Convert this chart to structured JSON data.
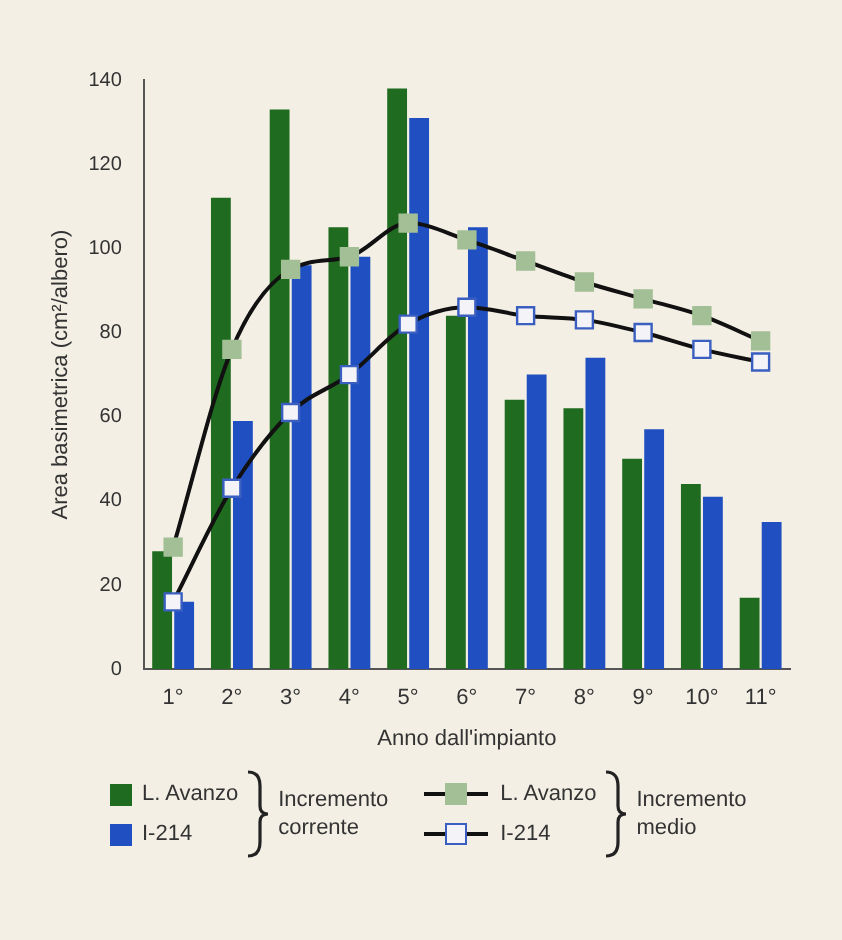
{
  "chart_data": {
    "type": "bar",
    "xlabel": "Anno dall'impianto",
    "ylabel": "Area basimetrica (cm²/albero)",
    "categories": [
      "1°",
      "2°",
      "3°",
      "4°",
      "5°",
      "6°",
      "7°",
      "8°",
      "9°",
      "10°",
      "11°"
    ],
    "series": [
      {
        "name": "L. Avanzo",
        "color": "#1f6b1f",
        "values": [
          28,
          112,
          133,
          105,
          138,
          84,
          64,
          62,
          50,
          44,
          17
        ]
      },
      {
        "name": "I-214",
        "color": "#1f4fc0",
        "values": [
          16,
          59,
          96,
          98,
          131,
          105,
          70,
          74,
          57,
          41,
          35
        ]
      },
      {
        "name": "L. Avanzo",
        "type": "line",
        "color": "#a3bf96",
        "values": [
          29,
          76,
          95,
          98,
          106,
          102,
          97,
          92,
          88,
          84,
          78
        ]
      },
      {
        "name": "I-214",
        "type": "line",
        "color": "#f4f4f8",
        "values": [
          16,
          43,
          61,
          70,
          82,
          86,
          84,
          83,
          80,
          76,
          73
        ]
      }
    ],
    "ylim": [
      0,
      140
    ],
    "yticks": [
      0,
      20,
      40,
      60,
      80,
      100,
      120,
      140
    ],
    "grid": false,
    "legend": "bottom",
    "marker": "square",
    "line_style": "solid",
    "annotations": [
      "Incremento corrente",
      "Incremento medio"
    ]
  }
}
